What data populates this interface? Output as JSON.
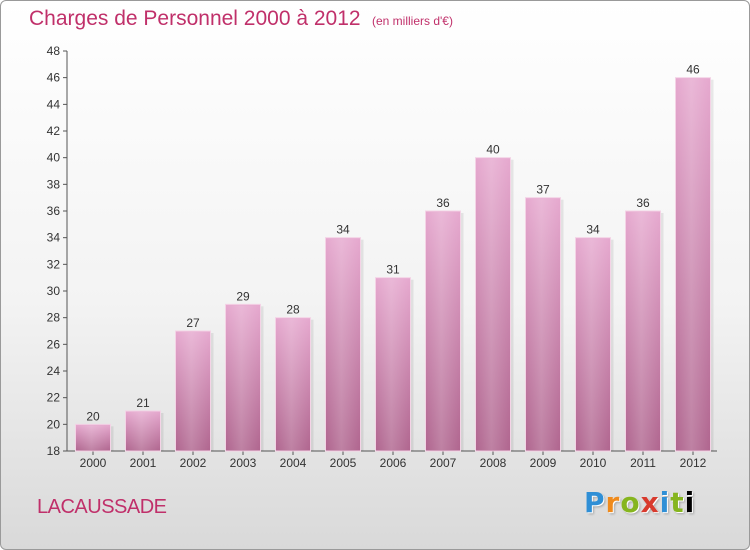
{
  "header": {
    "title": "Charges de Personnel 2000 à 2012",
    "subtitle": "(en milliers d'€)"
  },
  "footer": {
    "place": "LACAUSSADE",
    "logo_letters": [
      "P",
      "r",
      "o",
      "x",
      "i",
      "t",
      "i"
    ]
  },
  "colors": {
    "accent": "#c0306a",
    "bar_light": "#e6a9cf",
    "bar_dark": "#b0668f"
  },
  "chart_data": {
    "type": "bar",
    "title": "Charges de Personnel 2000 à 2012",
    "subtitle": "(en milliers d'€)",
    "xlabel": "",
    "ylabel": "",
    "categories": [
      "2000",
      "2001",
      "2002",
      "2003",
      "2004",
      "2005",
      "2006",
      "2007",
      "2008",
      "2009",
      "2010",
      "2011",
      "2012"
    ],
    "values": [
      20,
      21,
      27,
      29,
      28,
      34,
      31,
      36,
      40,
      37,
      34,
      36,
      46
    ],
    "ylim": [
      18,
      48
    ],
    "yticks": [
      18,
      20,
      22,
      24,
      26,
      28,
      30,
      32,
      34,
      36,
      38,
      40,
      42,
      44,
      46,
      48
    ],
    "grid": false,
    "legend": "none"
  }
}
